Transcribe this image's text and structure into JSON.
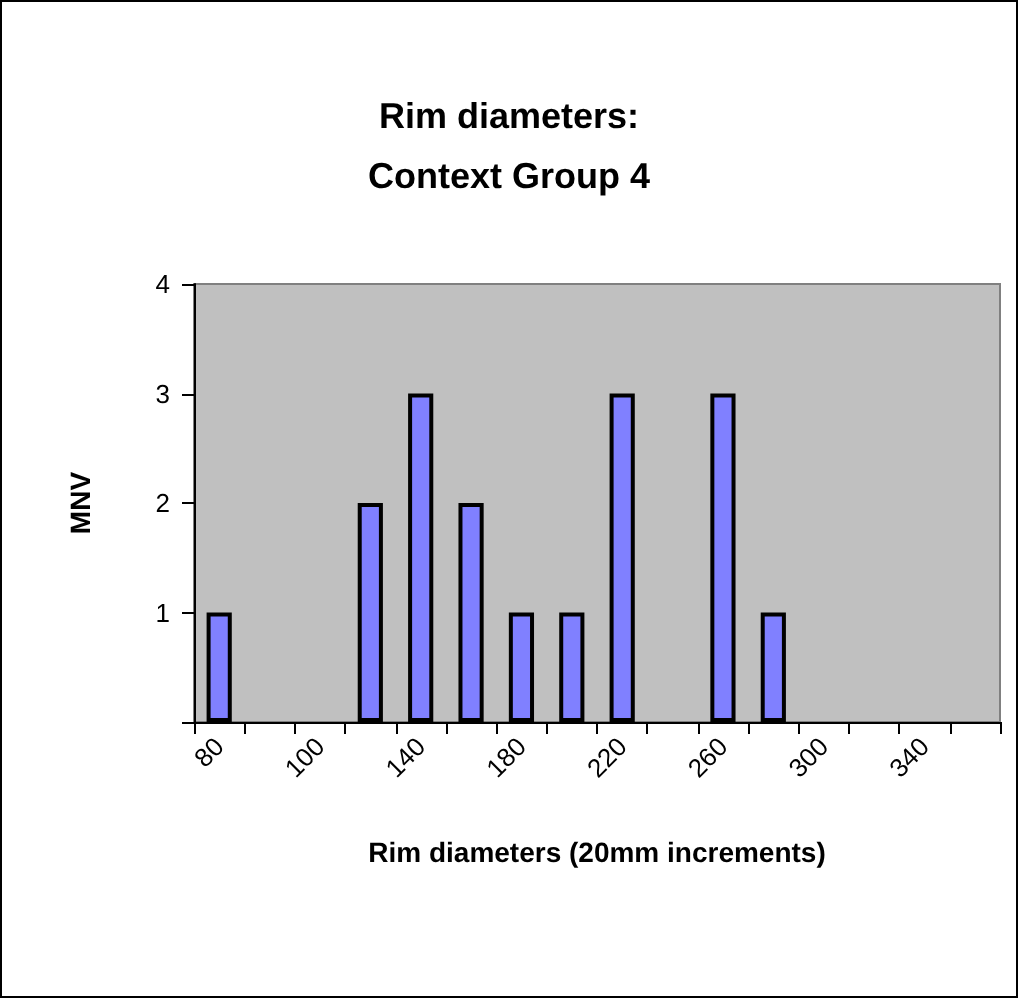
{
  "chart_data": {
    "type": "bar",
    "title": "Rim diameters:\nContext Group 4",
    "xlabel": "Rim diameters (20mm increments)",
    "ylabel": "MNV",
    "categories": [
      "80",
      null,
      "100",
      null,
      "140",
      null,
      "180",
      null,
      "220",
      null,
      "260",
      null,
      "300",
      null,
      "340",
      null
    ],
    "values": [
      1,
      0,
      0,
      2,
      3,
      2,
      1,
      1,
      3,
      0,
      3,
      1,
      0,
      0,
      0,
      0
    ],
    "color": "#8080ff",
    "ylim": [
      0,
      4
    ],
    "yticks": [
      {
        "value": 0,
        "label": null
      },
      1,
      2,
      3,
      4
    ],
    "grid": false
  }
}
